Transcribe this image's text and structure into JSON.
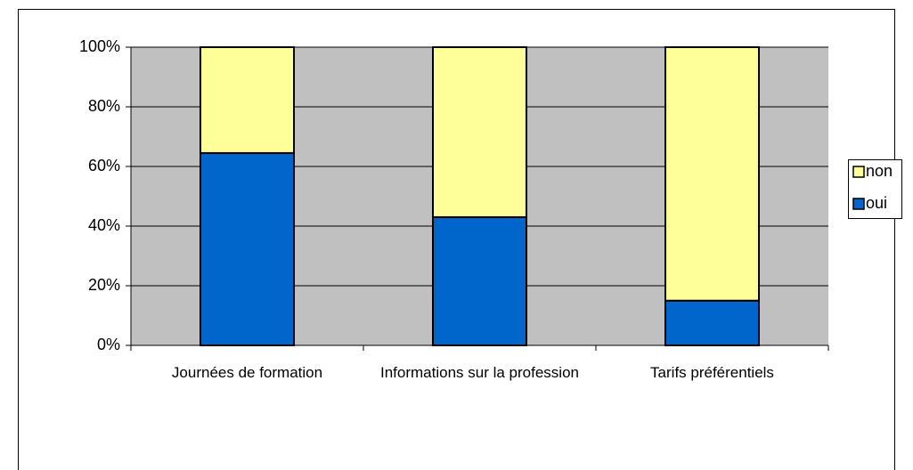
{
  "chart_data": {
    "type": "stacked_bar_100",
    "categories": [
      "Journées de formation",
      "Informations sur la profession",
      "Tarifs préférentiels"
    ],
    "series": [
      {
        "name": "oui",
        "color": "#0066cc",
        "values": [
          64.5,
          43,
          15
        ]
      },
      {
        "name": "non",
        "color": "#ffff99",
        "values": [
          35.5,
          57,
          85
        ]
      }
    ],
    "ylim": [
      0,
      100
    ],
    "yticks": [
      {
        "value": 0,
        "label": "0%"
      },
      {
        "value": 20,
        "label": "20%"
      },
      {
        "value": 40,
        "label": "40%"
      },
      {
        "value": 60,
        "label": "60%"
      },
      {
        "value": 80,
        "label": "80%"
      },
      {
        "value": 100,
        "label": "100%"
      }
    ],
    "grid": true,
    "legend": "right",
    "plot_background": "#c0c0c0"
  }
}
